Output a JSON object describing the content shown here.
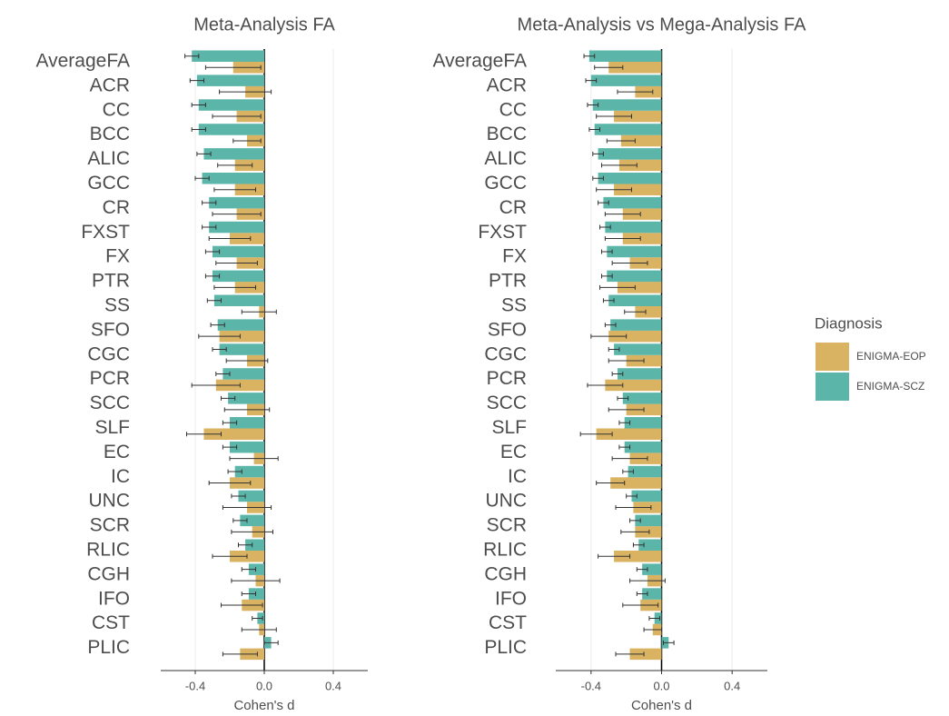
{
  "chart_data": [
    {
      "type": "bar",
      "orientation": "horizontal",
      "title": "Meta-Analysis FA",
      "x_label": "Cohen's d",
      "legend_title": "Diagnosis",
      "categories": [
        "AverageFA",
        "ACR",
        "CC",
        "BCC",
        "ALIC",
        "GCC",
        "CR",
        "FXST",
        "FX",
        "PTR",
        "SS",
        "SFO",
        "CGC",
        "PCR",
        "SCC",
        "SLF",
        "EC",
        "IC",
        "UNC",
        "SCR",
        "RLIC",
        "CGH",
        "IFO",
        "CST",
        "PLIC"
      ],
      "xlim": [
        -0.6,
        0.6
      ],
      "xticks": [
        -0.4,
        {
          "value": 0,
          "label": "0.0"
        },
        0.4
      ],
      "grid": true,
      "series": [
        {
          "name": "ENIGMA-EOP",
          "color": "#d9b262",
          "values": [
            -0.18,
            -0.11,
            -0.16,
            -0.1,
            -0.17,
            -0.17,
            -0.16,
            -0.2,
            -0.16,
            -0.17,
            -0.03,
            -0.26,
            -0.1,
            -0.28,
            -0.1,
            -0.35,
            -0.06,
            -0.2,
            -0.1,
            -0.07,
            -0.2,
            -0.05,
            -0.13,
            -0.03,
            -0.14
          ],
          "errors": [
            0.16,
            0.15,
            0.14,
            0.08,
            0.1,
            0.12,
            0.14,
            0.12,
            0.12,
            0.12,
            0.1,
            0.12,
            0.12,
            0.14,
            0.13,
            0.1,
            0.14,
            0.12,
            0.14,
            0.12,
            0.1,
            0.14,
            0.12,
            0.1,
            0.1
          ]
        },
        {
          "name": "ENIGMA-SCZ",
          "color": "#5bb5a9",
          "values": [
            -0.42,
            -0.39,
            -0.38,
            -0.38,
            -0.35,
            -0.36,
            -0.32,
            -0.32,
            -0.3,
            -0.3,
            -0.29,
            -0.27,
            -0.26,
            -0.24,
            -0.21,
            -0.2,
            -0.2,
            -0.17,
            -0.15,
            -0.14,
            -0.11,
            -0.09,
            -0.09,
            -0.04,
            0.04
          ],
          "errors": [
            0.04,
            0.04,
            0.04,
            0.04,
            0.04,
            0.04,
            0.04,
            0.04,
            0.04,
            0.04,
            0.04,
            0.04,
            0.04,
            0.04,
            0.04,
            0.04,
            0.04,
            0.04,
            0.04,
            0.04,
            0.04,
            0.04,
            0.04,
            0.03,
            0.04
          ]
        }
      ]
    },
    {
      "type": "bar",
      "orientation": "horizontal",
      "title": "Meta-Analysis vs Mega-Analysis FA",
      "x_label": "Cohen's d",
      "categories": [
        "AverageFA",
        "ACR",
        "CC",
        "BCC",
        "ALIC",
        "GCC",
        "CR",
        "FXST",
        "FX",
        "PTR",
        "SS",
        "SFO",
        "CGC",
        "PCR",
        "SCC",
        "SLF",
        "EC",
        "IC",
        "UNC",
        "SCR",
        "RLIC",
        "CGH",
        "IFO",
        "CST",
        "PLIC"
      ],
      "xlim": [
        -0.6,
        0.6
      ],
      "xticks": [
        -0.4,
        {
          "value": 0,
          "label": "0.0"
        },
        0.4
      ],
      "grid": true,
      "series": [
        {
          "values": [
            -0.3,
            -0.15,
            -0.27,
            -0.23,
            -0.24,
            -0.27,
            -0.22,
            -0.22,
            -0.18,
            -0.25,
            -0.15,
            -0.3,
            -0.2,
            -0.32,
            -0.2,
            -0.37,
            -0.18,
            -0.29,
            -0.16,
            -0.15,
            -0.27,
            -0.08,
            -0.12,
            -0.05,
            -0.18
          ],
          "errors": [
            0.08,
            0.1,
            0.1,
            0.08,
            0.1,
            0.1,
            0.1,
            0.1,
            0.1,
            0.1,
            0.06,
            0.1,
            0.1,
            0.1,
            0.1,
            0.09,
            0.1,
            0.08,
            0.1,
            0.08,
            0.09,
            0.1,
            0.1,
            0.05,
            0.08
          ]
        },
        {
          "values": [
            -0.41,
            -0.4,
            -0.39,
            -0.38,
            -0.36,
            -0.36,
            -0.33,
            -0.32,
            -0.31,
            -0.31,
            -0.3,
            -0.29,
            -0.27,
            -0.25,
            -0.22,
            -0.21,
            -0.21,
            -0.19,
            -0.17,
            -0.15,
            -0.13,
            -0.11,
            -0.11,
            -0.04,
            0.04
          ],
          "errors": [
            0.03,
            0.03,
            0.03,
            0.03,
            0.03,
            0.03,
            0.03,
            0.03,
            0.03,
            0.03,
            0.03,
            0.03,
            0.03,
            0.03,
            0.03,
            0.03,
            0.03,
            0.03,
            0.03,
            0.03,
            0.03,
            0.03,
            0.03,
            0.03,
            0.03
          ]
        }
      ]
    }
  ]
}
